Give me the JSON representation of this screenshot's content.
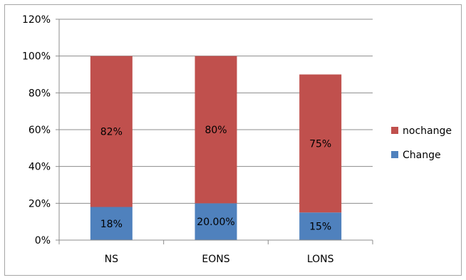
{
  "chart_data": {
    "type": "bar",
    "stacked": true,
    "categories": [
      "NS",
      "EONS",
      "LONS"
    ],
    "series": [
      {
        "name": "Change",
        "values": [
          18,
          20,
          15
        ],
        "labels": [
          "18%",
          "20.00%",
          "15%"
        ],
        "color": "#4f81bd"
      },
      {
        "name": "nochange",
        "values": [
          82,
          80,
          75
        ],
        "labels": [
          "82%",
          "80%",
          "75%"
        ],
        "color": "#c0504d"
      }
    ],
    "yticks": [
      "0%",
      "20%",
      "40%",
      "60%",
      "80%",
      "100%",
      "120%"
    ],
    "ylim": [
      0,
      120
    ],
    "grid": true,
    "legend_position": "right",
    "legend_order": [
      "nochange",
      "Change"
    ],
    "gridline_color": "#8c8c8c",
    "axis_color": "#8c8c8c"
  }
}
